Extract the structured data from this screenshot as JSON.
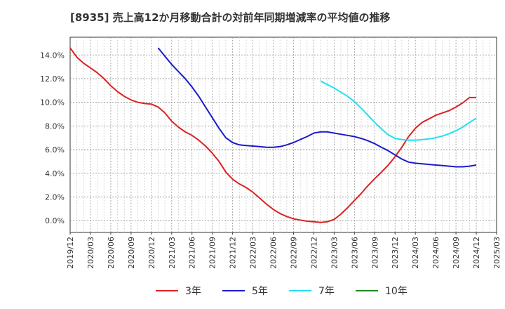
{
  "chart_data": {
    "type": "line",
    "title": "[8935]  売上高12か月移動合計の対前年同期増減率の平均値の推移",
    "x_ticks": [
      "2019/12",
      "2020/03",
      "2020/06",
      "2020/09",
      "2020/12",
      "2021/03",
      "2021/06",
      "2021/09",
      "2021/12",
      "2022/03",
      "2022/06",
      "2022/09",
      "2022/12",
      "2023/03",
      "2023/06",
      "2023/09",
      "2023/12",
      "2024/03",
      "2024/06",
      "2024/09",
      "2024/12",
      "2025/03"
    ],
    "y_ticks": [
      "0.0%",
      "2.0%",
      "4.0%",
      "6.0%",
      "8.0%",
      "10.0%",
      "12.0%",
      "14.0%"
    ],
    "ylim": [
      -1.0,
      15.5
    ],
    "grid": true,
    "legend_position": "bottom",
    "series": [
      {
        "name": "3年",
        "color": "#dd2222",
        "x": [
          "2019/12",
          "2020/01",
          "2020/02",
          "2020/03",
          "2020/04",
          "2020/05",
          "2020/06",
          "2020/07",
          "2020/08",
          "2020/09",
          "2020/10",
          "2020/11",
          "2020/12",
          "2021/01",
          "2021/02",
          "2021/03",
          "2021/04",
          "2021/05",
          "2021/06",
          "2021/07",
          "2021/08",
          "2021/09",
          "2021/10",
          "2021/11",
          "2021/12",
          "2022/01",
          "2022/02",
          "2022/03",
          "2022/04",
          "2022/05",
          "2022/06",
          "2022/07",
          "2022/08",
          "2022/09",
          "2022/10",
          "2022/11",
          "2022/12",
          "2023/01",
          "2023/02",
          "2023/03",
          "2023/04",
          "2023/05",
          "2023/06",
          "2023/07",
          "2023/08",
          "2023/09",
          "2023/10",
          "2023/11",
          "2023/12",
          "2024/01",
          "2024/02",
          "2024/03",
          "2024/04",
          "2024/05",
          "2024/06",
          "2024/07",
          "2024/08",
          "2024/09",
          "2024/10",
          "2024/11",
          "2024/12"
        ],
        "values": [
          14.6,
          13.8,
          13.3,
          12.9,
          12.5,
          12.0,
          11.4,
          10.9,
          10.5,
          10.2,
          10.0,
          9.9,
          9.85,
          9.6,
          9.1,
          8.4,
          7.9,
          7.5,
          7.2,
          6.8,
          6.3,
          5.7,
          5.0,
          4.1,
          3.5,
          3.1,
          2.8,
          2.4,
          1.9,
          1.4,
          0.95,
          0.6,
          0.35,
          0.15,
          0.05,
          -0.05,
          -0.1,
          -0.15,
          -0.1,
          0.1,
          0.55,
          1.1,
          1.7,
          2.3,
          2.95,
          3.55,
          4.1,
          4.7,
          5.4,
          6.2,
          7.1,
          7.8,
          8.3,
          8.6,
          8.9,
          9.1,
          9.3,
          9.6,
          9.95,
          10.4,
          10.4
        ]
      },
      {
        "name": "5年",
        "color": "#1a1acc",
        "x": [
          "2021/01",
          "2021/02",
          "2021/03",
          "2021/04",
          "2021/05",
          "2021/06",
          "2021/07",
          "2021/08",
          "2021/09",
          "2021/10",
          "2021/11",
          "2021/12",
          "2022/01",
          "2022/02",
          "2022/03",
          "2022/04",
          "2022/05",
          "2022/06",
          "2022/07",
          "2022/08",
          "2022/09",
          "2022/10",
          "2022/11",
          "2022/12",
          "2023/01",
          "2023/02",
          "2023/03",
          "2023/04",
          "2023/05",
          "2023/06",
          "2023/07",
          "2023/08",
          "2023/09",
          "2023/10",
          "2023/11",
          "2023/12",
          "2024/01",
          "2024/02",
          "2024/03",
          "2024/04",
          "2024/05",
          "2024/06",
          "2024/07",
          "2024/08",
          "2024/09",
          "2024/10",
          "2024/11",
          "2024/12"
        ],
        "values": [
          14.6,
          13.9,
          13.2,
          12.6,
          12.0,
          11.3,
          10.5,
          9.6,
          8.7,
          7.8,
          7.0,
          6.6,
          6.4,
          6.35,
          6.3,
          6.25,
          6.2,
          6.2,
          6.25,
          6.4,
          6.6,
          6.85,
          7.1,
          7.4,
          7.5,
          7.5,
          7.4,
          7.3,
          7.2,
          7.1,
          6.95,
          6.75,
          6.5,
          6.2,
          5.9,
          5.55,
          5.2,
          4.95,
          4.85,
          4.8,
          4.75,
          4.7,
          4.65,
          4.6,
          4.55,
          4.55,
          4.6,
          4.7
        ]
      },
      {
        "name": "7年",
        "color": "#22e0f0",
        "x": [
          "2023/01",
          "2023/02",
          "2023/03",
          "2023/04",
          "2023/05",
          "2023/06",
          "2023/07",
          "2023/08",
          "2023/09",
          "2023/10",
          "2023/11",
          "2023/12",
          "2024/01",
          "2024/02",
          "2024/03",
          "2024/04",
          "2024/05",
          "2024/06",
          "2024/07",
          "2024/08",
          "2024/09",
          "2024/10",
          "2024/11",
          "2024/12"
        ],
        "values": [
          11.8,
          11.5,
          11.2,
          10.85,
          10.5,
          10.05,
          9.5,
          8.9,
          8.3,
          7.75,
          7.25,
          6.95,
          6.85,
          6.8,
          6.8,
          6.85,
          6.9,
          7.0,
          7.15,
          7.35,
          7.6,
          7.9,
          8.3,
          8.65
        ]
      },
      {
        "name": "10年",
        "color": "#228822",
        "x": [],
        "values": []
      }
    ]
  }
}
